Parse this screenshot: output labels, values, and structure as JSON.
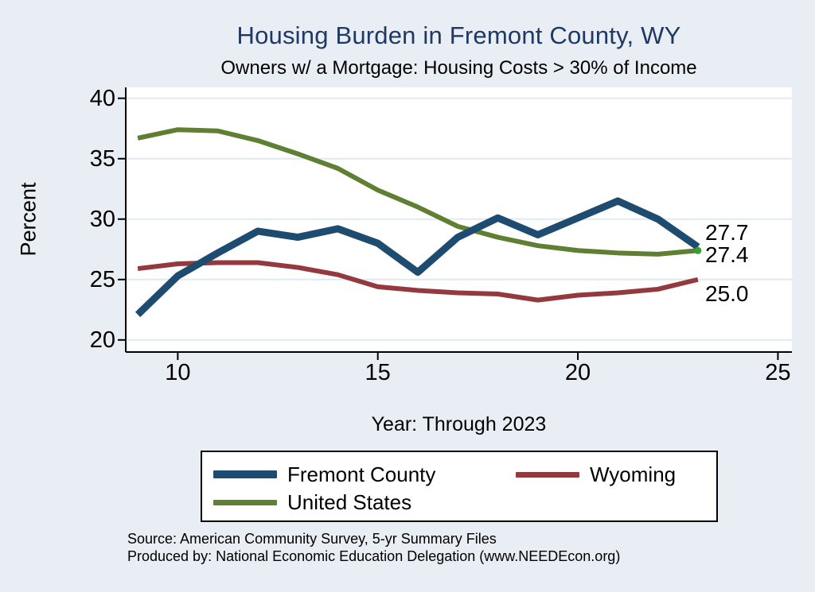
{
  "header": {
    "title": "Housing Burden in Fremont County, WY",
    "subtitle": "Owners w/ a Mortgage: Housing Costs > 30% of Income"
  },
  "footer": {
    "source": "Source: American Community Survey, 5-yr Summary Files",
    "produced_by": "Produced by: National Economic Education Delegation (www.NEEDEcon.org)"
  },
  "colors": {
    "background": "#e8eef3",
    "plot_background": "#ffffff",
    "gridline": "#dfeaf2",
    "axis": "#000000",
    "title": "#1f3864",
    "end_marker": "#3c9e32"
  },
  "chart_data": {
    "type": "line",
    "title": "Housing Burden in Fremont County, WY",
    "subtitle": "Owners w/ a Mortgage: Housing Costs > 30% of Income",
    "xlabel": "Year: Through 2023",
    "ylabel": "Percent",
    "x": [
      9,
      10,
      11,
      12,
      13,
      14,
      15,
      16,
      17,
      18,
      19,
      20,
      21,
      22,
      23
    ],
    "x_ticks": [
      10,
      15,
      20,
      25
    ],
    "y_ticks": [
      20,
      25,
      30,
      35,
      40
    ],
    "x_range": [
      8.7,
      25.35
    ],
    "y_range": [
      19.0,
      40.9
    ],
    "grid": "horizontal",
    "legend_position": "bottom",
    "series": [
      {
        "name": "Fremont County",
        "color": "#1e4c70",
        "line_width": 9,
        "values": [
          22.1,
          25.3,
          27.2,
          29.0,
          28.5,
          29.2,
          28.0,
          25.6,
          28.5,
          30.1,
          28.7,
          30.1,
          31.5,
          30.0,
          27.7
        ],
        "end_label": "27.7"
      },
      {
        "name": "Wyoming",
        "color": "#943a3e",
        "line_width": 6,
        "values": [
          25.9,
          26.3,
          26.4,
          26.4,
          26.0,
          25.4,
          24.4,
          24.1,
          23.9,
          23.8,
          23.3,
          23.7,
          23.9,
          24.2,
          25.0
        ],
        "end_label": "25.0"
      },
      {
        "name": "United States",
        "color": "#5f7f32",
        "line_width": 6,
        "values": [
          36.7,
          37.4,
          37.3,
          36.5,
          35.4,
          34.2,
          32.4,
          31.0,
          29.4,
          28.5,
          27.8,
          27.4,
          27.2,
          27.1,
          27.4
        ],
        "end_label": "27.4",
        "end_marker": true
      }
    ]
  }
}
